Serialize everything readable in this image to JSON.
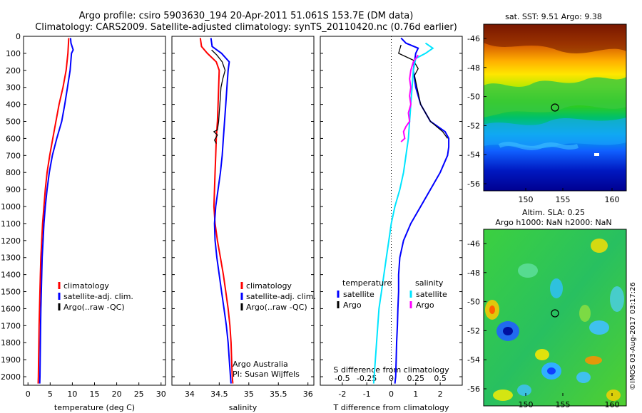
{
  "header": {
    "line1": "Argo profile: csiro 5903630_194 20-Apr-2011 51.061S 153.7E (DM data)",
    "line2": "Climatology: CARS2009. Satellite-adjusted climatology: synTS_20110420.nc (0.76d earlier)"
  },
  "colors": {
    "climatology": "#ff0000",
    "satellite": "#0000ff",
    "argo": "#000000",
    "sal_satellite": "#00e5ff",
    "sal_argo": "#ff00ff"
  },
  "chart_data": [
    {
      "type": "line",
      "name": "temperature",
      "xlabel": "temperature (deg C)",
      "ylim": [
        2050,
        0
      ],
      "xlim": [
        -1,
        31
      ],
      "xticks": [
        0,
        5,
        10,
        15,
        20,
        25,
        30
      ],
      "yticks": [
        0,
        100,
        200,
        300,
        400,
        500,
        600,
        700,
        800,
        900,
        1000,
        1100,
        1200,
        1300,
        1400,
        1500,
        1600,
        1700,
        1800,
        1900,
        2000
      ],
      "legend": {
        "placement": "lower-middle",
        "entries": [
          "climatology",
          "satellite-adj. clim.",
          "Argo(..raw -QC)"
        ]
      },
      "series": [
        {
          "name": "climatology",
          "color": "#ff0000",
          "points": [
            [
              9.2,
              10
            ],
            [
              9.0,
              100
            ],
            [
              8.6,
              200
            ],
            [
              7.9,
              300
            ],
            [
              7.0,
              400
            ],
            [
              6.3,
              500
            ],
            [
              5.6,
              600
            ],
            [
              4.9,
              700
            ],
            [
              4.3,
              800
            ],
            [
              3.9,
              900
            ],
            [
              3.6,
              1000
            ],
            [
              3.3,
              1100
            ],
            [
              3.1,
              1200
            ],
            [
              2.9,
              1300
            ],
            [
              2.8,
              1400
            ],
            [
              2.7,
              1500
            ],
            [
              2.6,
              1600
            ],
            [
              2.5,
              1700
            ],
            [
              2.45,
              1800
            ],
            [
              2.4,
              1900
            ],
            [
              2.35,
              2000
            ],
            [
              2.3,
              2040
            ]
          ]
        },
        {
          "name": "satellite-adj. clim.",
          "color": "#0000ff",
          "points": [
            [
              9.6,
              10
            ],
            [
              9.7,
              40
            ],
            [
              10.2,
              80
            ],
            [
              9.8,
              100
            ],
            [
              9.5,
              200
            ],
            [
              8.9,
              300
            ],
            [
              8.3,
              400
            ],
            [
              7.6,
              500
            ],
            [
              6.5,
              600
            ],
            [
              5.5,
              700
            ],
            [
              4.8,
              800
            ],
            [
              4.3,
              900
            ],
            [
              3.9,
              1000
            ],
            [
              3.6,
              1100
            ],
            [
              3.4,
              1200
            ],
            [
              3.2,
              1300
            ],
            [
              3.1,
              1400
            ],
            [
              3.0,
              1500
            ],
            [
              2.9,
              1600
            ],
            [
              2.85,
              1700
            ],
            [
              2.8,
              1800
            ],
            [
              2.75,
              1900
            ],
            [
              2.7,
              2000
            ],
            [
              2.65,
              2040
            ]
          ]
        }
      ]
    },
    {
      "type": "line",
      "name": "salinity",
      "xlabel": "salinity",
      "ylim": [
        2050,
        0
      ],
      "xlim": [
        33.7,
        36.1
      ],
      "xticks": [
        34,
        34.5,
        35,
        35.5,
        36
      ],
      "legend": {
        "placement": "lower-middle",
        "entries": [
          "climatology",
          "satellite-adj. clim.",
          "Argo(..raw -QC)"
        ]
      },
      "annotation": [
        "Argo Australia",
        "PI: Susan Wijffels"
      ],
      "series": [
        {
          "name": "climatology",
          "color": "#ff0000",
          "points": [
            [
              34.18,
              10
            ],
            [
              34.2,
              60
            ],
            [
              34.3,
              100
            ],
            [
              34.45,
              150
            ],
            [
              34.5,
              200
            ],
            [
              34.49,
              300
            ],
            [
              34.48,
              400
            ],
            [
              34.47,
              500
            ],
            [
              34.45,
              600
            ],
            [
              34.44,
              700
            ],
            [
              34.43,
              800
            ],
            [
              34.42,
              900
            ],
            [
              34.41,
              1000
            ],
            [
              34.43,
              1100
            ],
            [
              34.47,
              1200
            ],
            [
              34.52,
              1300
            ],
            [
              34.57,
              1400
            ],
            [
              34.61,
              1500
            ],
            [
              34.65,
              1600
            ],
            [
              34.68,
              1700
            ],
            [
              34.7,
              1800
            ],
            [
              34.71,
              1900
            ],
            [
              34.72,
              2000
            ],
            [
              34.73,
              2040
            ]
          ]
        },
        {
          "name": "satellite-adj. clim.",
          "color": "#0000ff",
          "points": [
            [
              34.36,
              10
            ],
            [
              34.38,
              60
            ],
            [
              34.54,
              100
            ],
            [
              34.67,
              150
            ],
            [
              34.65,
              200
            ],
            [
              34.63,
              300
            ],
            [
              34.61,
              400
            ],
            [
              34.59,
              500
            ],
            [
              34.57,
              600
            ],
            [
              34.55,
              700
            ],
            [
              34.52,
              800
            ],
            [
              34.48,
              900
            ],
            [
              34.44,
              1000
            ],
            [
              34.42,
              1100
            ],
            [
              34.43,
              1200
            ],
            [
              34.46,
              1300
            ],
            [
              34.5,
              1400
            ],
            [
              34.54,
              1500
            ],
            [
              34.58,
              1600
            ],
            [
              34.62,
              1700
            ],
            [
              34.65,
              1800
            ],
            [
              34.67,
              1900
            ],
            [
              34.69,
              2000
            ],
            [
              34.7,
              2040
            ]
          ]
        },
        {
          "name": "Argo(..raw -QC)",
          "color": "#000000",
          "points": [
            [
              34.37,
              80
            ],
            [
              34.46,
              110
            ],
            [
              34.55,
              150
            ],
            [
              34.6,
              200
            ],
            [
              34.56,
              250
            ],
            [
              34.53,
              300
            ],
            [
              34.52,
              350
            ],
            [
              34.51,
              400
            ],
            [
              34.5,
              450
            ],
            [
              34.49,
              500
            ],
            [
              34.47,
              550
            ],
            [
              34.41,
              560
            ],
            [
              34.47,
              580
            ],
            [
              34.42,
              610
            ],
            [
              34.45,
              630
            ]
          ]
        }
      ]
    },
    {
      "type": "line",
      "name": "difference",
      "xlabel": "T difference from climatology",
      "xlabel2": "S difference from climatology",
      "ylim": [
        2050,
        0
      ],
      "xlim": [
        -2.9,
        2.9
      ],
      "xticks": [
        -2,
        -1,
        0,
        1,
        2
      ],
      "xticks2": [
        "-0.5",
        "-0.25",
        "0",
        "0.25",
        "0.5"
      ],
      "legend": {
        "placement": "lower-middle",
        "headers": [
          "temperature",
          "salinity"
        ],
        "entries": [
          "satellite",
          "Argo",
          "satellite",
          "Argo"
        ]
      },
      "series": [
        {
          "name": "temperature satellite",
          "color": "#0000ff",
          "points": [
            [
              0.4,
              10
            ],
            [
              0.6,
              40
            ],
            [
              1.1,
              70
            ],
            [
              1.0,
              100
            ],
            [
              0.9,
              200
            ],
            [
              1.0,
              300
            ],
            [
              1.2,
              400
            ],
            [
              1.6,
              500
            ],
            [
              2.2,
              560
            ],
            [
              2.35,
              600
            ],
            [
              2.35,
              650
            ],
            [
              2.3,
              700
            ],
            [
              2.0,
              800
            ],
            [
              1.6,
              900
            ],
            [
              1.2,
              1000
            ],
            [
              0.8,
              1100
            ],
            [
              0.5,
              1200
            ],
            [
              0.35,
              1300
            ],
            [
              0.3,
              1400
            ],
            [
              0.3,
              1500
            ],
            [
              0.27,
              1600
            ],
            [
              0.25,
              1700
            ],
            [
              0.22,
              1800
            ],
            [
              0.2,
              1900
            ],
            [
              0.18,
              2000
            ],
            [
              0.15,
              2040
            ]
          ]
        },
        {
          "name": "temperature Argo",
          "color": "#000000",
          "points": [
            [
              0.4,
              50
            ],
            [
              0.3,
              100
            ],
            [
              0.9,
              140
            ],
            [
              1.1,
              190
            ],
            [
              0.95,
              230
            ],
            [
              1.05,
              300
            ],
            [
              1.2,
              400
            ],
            [
              1.6,
              500
            ],
            [
              2.1,
              560
            ],
            [
              2.3,
              600
            ]
          ]
        },
        {
          "name": "salinity satellite",
          "color": "#00e5ff",
          "points": [
            [
              1.4,
              40
            ],
            [
              1.7,
              70
            ],
            [
              1.4,
              100
            ],
            [
              1.0,
              130
            ],
            [
              0.9,
              200
            ],
            [
              0.85,
              300
            ],
            [
              0.8,
              400
            ],
            [
              0.75,
              500
            ],
            [
              0.7,
              600
            ],
            [
              0.6,
              700
            ],
            [
              0.5,
              800
            ],
            [
              0.35,
              900
            ],
            [
              0.15,
              1000
            ],
            [
              0.0,
              1100
            ],
            [
              -0.1,
              1200
            ],
            [
              -0.2,
              1300
            ],
            [
              -0.3,
              1400
            ],
            [
              -0.4,
              1500
            ],
            [
              -0.5,
              1600
            ],
            [
              -0.55,
              1700
            ],
            [
              -0.6,
              1800
            ],
            [
              -0.65,
              1900
            ],
            [
              -0.7,
              2000
            ],
            [
              -0.72,
              2040
            ]
          ]
        },
        {
          "name": "salinity Argo",
          "color": "#ff00ff",
          "points": [
            [
              1.1,
              110
            ],
            [
              0.9,
              150
            ],
            [
              0.8,
              200
            ],
            [
              0.75,
              250
            ],
            [
              0.8,
              300
            ],
            [
              0.75,
              350
            ],
            [
              0.8,
              400
            ],
            [
              0.7,
              450
            ],
            [
              0.75,
              500
            ],
            [
              0.6,
              530
            ],
            [
              0.5,
              560
            ],
            [
              0.55,
              600
            ],
            [
              0.4,
              620
            ]
          ]
        }
      ]
    }
  ],
  "maps": {
    "sst": {
      "title": "sat. SST: 9.51  Argo: 9.38",
      "lat_ticks": [
        "-46",
        "-48",
        "-50",
        "-52",
        "-54",
        "-56"
      ],
      "lon_ticks": [
        "150",
        "155",
        "160"
      ]
    },
    "sla": {
      "title1": "Altim. SLA: 0.25",
      "title2": "Argo h1000: NaN  h2000: NaN",
      "lat_ticks": [
        "-46",
        "-48",
        "-50",
        "-52",
        "-54",
        "-56"
      ],
      "lon_ticks": [
        "150",
        "155",
        "160"
      ]
    },
    "credit": "©IMOS 03-Aug-2017 03:17:26"
  }
}
